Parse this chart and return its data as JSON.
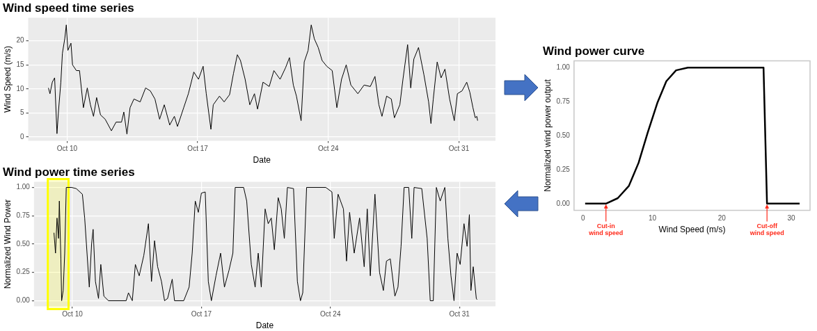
{
  "chart_data": [
    {
      "type": "line",
      "title": "Wind speed time series",
      "xlabel": "Date",
      "ylabel": "Wind Speed (m/s)",
      "color": "#000000",
      "grid": true,
      "xlim": [
        "--10-07T22:00",
        "--11-01T23:00"
      ],
      "xticks": [
        {
          "value": "--10-10",
          "label": "Oct 10"
        },
        {
          "value": "--10-17",
          "label": "Oct 17"
        },
        {
          "value": "--10-24",
          "label": "Oct 24"
        },
        {
          "value": "--10-31",
          "label": "Oct 31"
        }
      ],
      "ylim": [
        -0.8,
        24.8
      ],
      "yticks": [
        0,
        5,
        10,
        15,
        20
      ],
      "x": [
        "--10-09T00:00",
        "--10-09T02:00",
        "--10-09T05:00",
        "--10-09T08:00",
        "--10-09T11:00",
        "--10-09T13:00",
        "--10-09T16:00",
        "--10-09T18:00",
        "--10-09T21:00",
        "--10-09T23:00",
        "--10-10T01:00",
        "--10-10T05:00",
        "--10-10T07:00",
        "--10-10T12:00",
        "--10-10T16:00",
        "--10-10T21:00",
        "--10-11T02:00",
        "--10-11T06:00",
        "--10-11T10:00",
        "--10-11T14:00",
        "--10-11T19:00",
        "--10-12T01:00",
        "--10-12T09:00",
        "--10-12T15:00",
        "--10-12T22:00",
        "--10-13T01:00",
        "--10-13T05:00",
        "--10-13T09:00",
        "--10-13T14:00",
        "--10-13T22:00",
        "--10-14T05:00",
        "--10-14T11:00",
        "--10-14T17:00",
        "--10-14T23:00",
        "--10-15T05:00",
        "--10-15T12:00",
        "--10-15T18:00",
        "--10-15T22:00",
        "--10-16T06:00",
        "--10-16T12:00",
        "--10-16T19:00",
        "--10-17T01:00",
        "--10-17T07:00",
        "--10-17T11:00",
        "--10-17T17:00",
        "--10-17T20:00",
        "--10-18T04:00",
        "--10-18T10:00",
        "--10-18T17:00",
        "--10-18T22:00",
        "--10-19T03:00",
        "--10-19T07:00",
        "--10-19T13:00",
        "--10-19T19:00",
        "--10-20T01:00",
        "--10-20T05:00",
        "--10-20T12:00",
        "--10-20T20:00",
        "--10-21T02:00",
        "--10-21T10:00",
        "--10-21T17:00",
        "--10-21T22:00",
        "--10-22T03:00",
        "--10-22T07:00",
        "--10-22T13:00",
        "--10-22T17:00",
        "--10-22T22:00",
        "--10-23T02:00",
        "--10-23T06:00",
        "--10-23T11:00",
        "--10-23T16:00",
        "--10-23T22:00",
        "--10-24T05:00",
        "--10-24T11:00",
        "--10-24T17:00",
        "--10-24T23:00",
        "--10-25T05:00",
        "--10-25T14:00",
        "--10-25T22:00",
        "--10-26T06:00",
        "--10-26T12:00",
        "--10-26T17:00",
        "--10-26T21:00",
        "--10-27T03:00",
        "--10-27T09:00",
        "--10-27T13:00",
        "--10-27T20:00",
        "--10-28T00:00",
        "--10-28T06:00",
        "--10-28T10:00",
        "--10-28T14:00",
        "--10-28T20:00",
        "--10-29T03:00",
        "--10-29T09:00",
        "--10-29T12:00",
        "--10-29T15:00",
        "--10-29T20:00",
        "--10-30T01:00",
        "--10-30T06:00",
        "--10-30T12:00",
        "--10-30T18:00",
        "--10-30T22:00",
        "--10-31T04:00",
        "--10-31T10:00",
        "--10-31T14:00",
        "--10-31T18:00",
        "--10-31T21:00",
        "--10-31T23:00",
        "--11-01T00:00"
      ],
      "values": [
        10.2,
        9.0,
        11.4,
        12.3,
        0.7,
        5.5,
        11.4,
        17.4,
        20.4,
        23.3,
        18.0,
        19.5,
        15.0,
        13.8,
        13.8,
        6.1,
        10.2,
        6.7,
        4.3,
        8.2,
        4.6,
        3.7,
        1.3,
        3.1,
        3.1,
        5.2,
        0.6,
        6.1,
        7.9,
        7.3,
        10.2,
        9.6,
        7.9,
        3.7,
        6.7,
        2.5,
        4.3,
        2.2,
        6.1,
        9.0,
        13.5,
        12.0,
        14.7,
        9.0,
        1.6,
        6.7,
        8.5,
        7.3,
        8.8,
        13.2,
        17.1,
        15.9,
        12.0,
        6.7,
        9.0,
        5.8,
        11.4,
        10.5,
        13.8,
        12.0,
        14.4,
        16.5,
        10.8,
        8.5,
        3.4,
        15.6,
        18.0,
        23.3,
        20.4,
        18.6,
        15.9,
        14.7,
        13.8,
        6.1,
        12.0,
        15.0,
        10.8,
        9.0,
        10.8,
        10.5,
        12.6,
        6.7,
        4.3,
        8.5,
        7.9,
        4.0,
        6.7,
        12.0,
        19.2,
        10.2,
        16.2,
        18.6,
        12.9,
        7.3,
        2.8,
        7.9,
        15.6,
        12.3,
        14.1,
        7.9,
        3.4,
        9.0,
        9.6,
        11.4,
        9.3,
        6.1,
        4.0,
        4.3,
        3.4
      ]
    },
    {
      "type": "line",
      "title": "Wind power time series",
      "xlabel": "Date",
      "ylabel": "Normalized Wind Power",
      "color": "#000000",
      "grid": true,
      "xlim": [
        "--10-07T22:00",
        "--11-01T23:00"
      ],
      "xticks": [
        {
          "value": "--10-10",
          "label": "Oct 10"
        },
        {
          "value": "--10-17",
          "label": "Oct 17"
        },
        {
          "value": "--10-24",
          "label": "Oct 24"
        },
        {
          "value": "--10-31",
          "label": "Oct 31"
        }
      ],
      "ylim": [
        -0.05,
        1.05
      ],
      "yticks": [
        {
          "value": 0,
          "label": "0.00"
        },
        {
          "value": 0.25,
          "label": "0.25"
        },
        {
          "value": 0.5,
          "label": "0.50"
        },
        {
          "value": 0.75,
          "label": "0.75"
        },
        {
          "value": 1,
          "label": "1.00"
        }
      ],
      "bands": [
        {
          "axis": "x",
          "from": "--10-08T16:00",
          "to": "--10-09T19:00",
          "color": "#ffff00"
        }
      ],
      "x": [
        "--10-09T00:00",
        "--10-09T02:00",
        "--10-09T04:00",
        "--10-09T06:00",
        "--10-09T07:00",
        "--10-09T09:00",
        "--10-09T10:00",
        "--10-09T12:00",
        "--10-09T14:00",
        "--10-09T16:00",
        "--10-09T23:00",
        "--10-10T05:00",
        "--10-10T13:00",
        "--10-10T16:00",
        "--10-10T22:00",
        "--10-11T01:00",
        "--10-11T03:00",
        "--10-11T06:00",
        "--10-11T10:00",
        "--10-11T13:00",
        "--10-11T17:00",
        "--10-11T23:00",
        "--10-12T22:00",
        "--10-13T01:00",
        "--10-13T06:00",
        "--10-13T10:00",
        "--10-13T15:00",
        "--10-13T21:00",
        "--10-14T03:00",
        "--10-14T07:00",
        "--10-14T11:00",
        "--10-14T15:00",
        "--10-14T20:00",
        "--10-15T00:00",
        "--10-15T04:00",
        "--10-15T10:00",
        "--10-15T13:00",
        "--10-16T01:00",
        "--10-16T08:00",
        "--10-16T12:00",
        "--10-16T16:00",
        "--10-16T20:00",
        "--10-17T00:00",
        "--10-17T05:00",
        "--10-17T09:00",
        "--10-17T13:00",
        "--10-17T19:00",
        "--10-18T01:00",
        "--10-18T06:00",
        "--10-18T12:00",
        "--10-18T17:00",
        "--10-18T20:00",
        "--10-19T07:00",
        "--10-19T11:00",
        "--10-19T17:00",
        "--10-19T22:00",
        "--10-20T02:00",
        "--10-20T06:00",
        "--10-20T11:00",
        "--10-20T15:00",
        "--10-20T19:00",
        "--10-20T23:00",
        "--10-21T04:00",
        "--10-21T08:00",
        "--10-21T12:00",
        "--10-21T16:00",
        "--10-22T00:00",
        "--10-22T05:00",
        "--10-22T09:00",
        "--10-22T12:00",
        "--10-22T17:00",
        "--10-23T18:00",
        "--10-24T02:00",
        "--10-24T05:00",
        "--10-24T10:00",
        "--10-24T17:00",
        "--10-24T21:00",
        "--10-25T01:00",
        "--10-25T07:00",
        "--10-25T14:00",
        "--10-25T20:00",
        "--10-26T00:00",
        "--10-26T04:00",
        "--10-26T10:00",
        "--10-26T16:00",
        "--10-26T21:00",
        "--10-27T01:00",
        "--10-27T06:00",
        "--10-27T12:00",
        "--10-27T16:00",
        "--10-27T20:00",
        "--10-28T00:00",
        "--10-28T06:00",
        "--10-28T10:00",
        "--10-28T13:00",
        "--10-28T23:00",
        "--10-29T06:00",
        "--10-29T10:00",
        "--10-29T14:00",
        "--10-29T18:00",
        "--10-29T23:00",
        "--10-30T05:00",
        "--10-30T09:00",
        "--10-30T13:00",
        "--10-30T17:00",
        "--10-30T21:00",
        "--10-31T01:00",
        "--10-31T06:00",
        "--10-31T10:00",
        "--10-31T13:00",
        "--10-31T15:00",
        "--10-31T18:00",
        "--10-31T22:00",
        "--10-31T23:00"
      ],
      "values": [
        0.6,
        0.42,
        0.73,
        0.55,
        0.88,
        0.37,
        0.0,
        0.09,
        0.42,
        1.0,
        1.0,
        0.99,
        0.94,
        0.73,
        0.12,
        0.5,
        0.63,
        0.17,
        0.02,
        0.32,
        0.04,
        0.0,
        0.0,
        0.07,
        0.0,
        0.32,
        0.22,
        0.4,
        0.68,
        0.17,
        0.53,
        0.3,
        0.17,
        0.0,
        0.02,
        0.19,
        0.0,
        0.0,
        0.12,
        0.42,
        0.88,
        0.78,
        0.95,
        0.96,
        0.17,
        0.0,
        0.22,
        0.42,
        0.12,
        0.27,
        0.42,
        1.0,
        1.0,
        0.88,
        0.32,
        0.12,
        0.42,
        0.12,
        0.81,
        0.68,
        0.73,
        0.45,
        0.91,
        0.81,
        0.55,
        1.0,
        0.99,
        0.17,
        0.0,
        0.07,
        1.0,
        1.0,
        0.96,
        0.55,
        0.94,
        0.81,
        0.35,
        0.78,
        0.42,
        0.73,
        0.3,
        0.81,
        0.22,
        0.94,
        0.25,
        0.09,
        0.35,
        0.37,
        0.04,
        0.12,
        0.48,
        1.0,
        1.0,
        0.55,
        1.0,
        0.99,
        0.55,
        0.0,
        0.0,
        1.0,
        0.88,
        1.0,
        0.55,
        0.22,
        0.0,
        0.42,
        0.32,
        0.68,
        0.48,
        0.76,
        0.09,
        0.3,
        0.02,
        0.01
      ]
    },
    {
      "type": "line",
      "title": "Wind power curve",
      "xlabel": "Wind Speed (m/s)",
      "ylabel": "Normalized wind power output",
      "color": "#000000",
      "xlim": [
        -1.3,
        32.7
      ],
      "xticks": [
        0,
        10,
        20,
        30
      ],
      "ylim": [
        -0.05,
        1.05
      ],
      "yticks": [
        {
          "value": 0,
          "label": "0.00"
        },
        {
          "value": 0.25,
          "label": "0.25"
        },
        {
          "value": 0.5,
          "label": "0.50"
        },
        {
          "value": 0.75,
          "label": "0.75"
        },
        {
          "value": 1,
          "label": "1.00"
        }
      ],
      "x": [
        0.3,
        3.3,
        5.0,
        6.6,
        8.0,
        9.3,
        10.7,
        12.0,
        13.4,
        15.1,
        26.0,
        26.5,
        31.2
      ],
      "values": [
        0,
        0,
        0.04,
        0.13,
        0.3,
        0.52,
        0.74,
        0.9,
        0.98,
        1.0,
        1.0,
        0,
        0
      ],
      "annotations": [
        {
          "text": "Cut-in wind speed",
          "x": 3.3,
          "y": 0
        },
        {
          "text": "Cut-off wind speed",
          "x": 26.5,
          "y": 0
        }
      ]
    }
  ]
}
